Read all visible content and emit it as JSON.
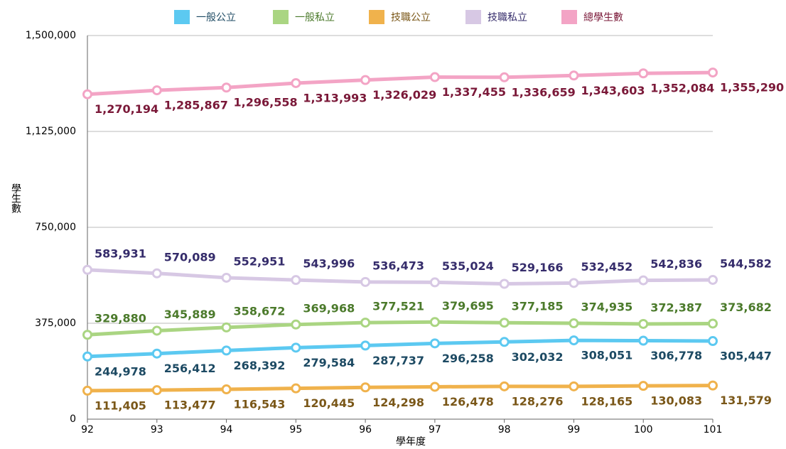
{
  "chart_data": {
    "type": "line",
    "x_label": "學年度",
    "y_label": "學生數",
    "categories": [
      "92",
      "93",
      "94",
      "95",
      "96",
      "97",
      "98",
      "99",
      "100",
      "101"
    ],
    "series": [
      {
        "name": "一般公立",
        "color": "#5cc9f1",
        "label_color": "#1d4a63",
        "values": [
          244978,
          256412,
          268392,
          279584,
          287737,
          296258,
          302032,
          308051,
          306778,
          305447
        ],
        "value_labels": [
          "244,978",
          "256,412",
          "268,392",
          "279,584",
          "287,737",
          "296,258",
          "302,032",
          "308,051",
          "306,778",
          "305,447"
        ]
      },
      {
        "name": "一般私立",
        "color": "#aad582",
        "label_color": "#4b7a2b",
        "values": [
          329880,
          345889,
          358672,
          369968,
          377521,
          379695,
          377185,
          374935,
          372387,
          373682
        ],
        "value_labels": [
          "329,880",
          "345,889",
          "358,672",
          "369,968",
          "377,521",
          "379,695",
          "377,185",
          "374,935",
          "372,387",
          "373,682"
        ]
      },
      {
        "name": "技職公立",
        "color": "#f0b24c",
        "label_color": "#7a5718",
        "values": [
          111405,
          113477,
          116543,
          120445,
          124298,
          126478,
          128276,
          128165,
          130083,
          131579
        ],
        "value_labels": [
          "111,405",
          "113,477",
          "116,543",
          "120,445",
          "124,298",
          "126,478",
          "128,276",
          "128,165",
          "130,083",
          "131,579"
        ]
      },
      {
        "name": "技職私立",
        "color": "#d7c8e4",
        "label_color": "#352c6b",
        "values": [
          583931,
          570089,
          552951,
          543996,
          536473,
          535024,
          529166,
          532452,
          542836,
          544582
        ],
        "value_labels": [
          "583,931",
          "570,089",
          "552,951",
          "543,996",
          "536,473",
          "535,024",
          "529,166",
          "532,452",
          "542,836",
          "544,582"
        ]
      },
      {
        "name": "總學生數",
        "color": "#f3a4c5",
        "label_color": "#7a1838",
        "values": [
          1270194,
          1285867,
          1296558,
          1313993,
          1326029,
          1337455,
          1336659,
          1343603,
          1352084,
          1355290
        ],
        "value_labels": [
          "1,270,194",
          "1,285,867",
          "1,296,558",
          "1,313,993",
          "1,326,029",
          "1,337,455",
          "1,336,659",
          "1,343,603",
          "1,352,084",
          "1,355,290"
        ]
      }
    ],
    "ylim": [
      0,
      1500000
    ],
    "yticks": [
      0,
      {
        "value": 375000,
        "label": "375,000"
      },
      {
        "value": 750000,
        "label": "750,000"
      },
      {
        "value": 1125000,
        "label": "1,125,000"
      },
      {
        "value": 1500000,
        "label": "1,500,000"
      }
    ],
    "grid": true,
    "legend": "top"
  }
}
